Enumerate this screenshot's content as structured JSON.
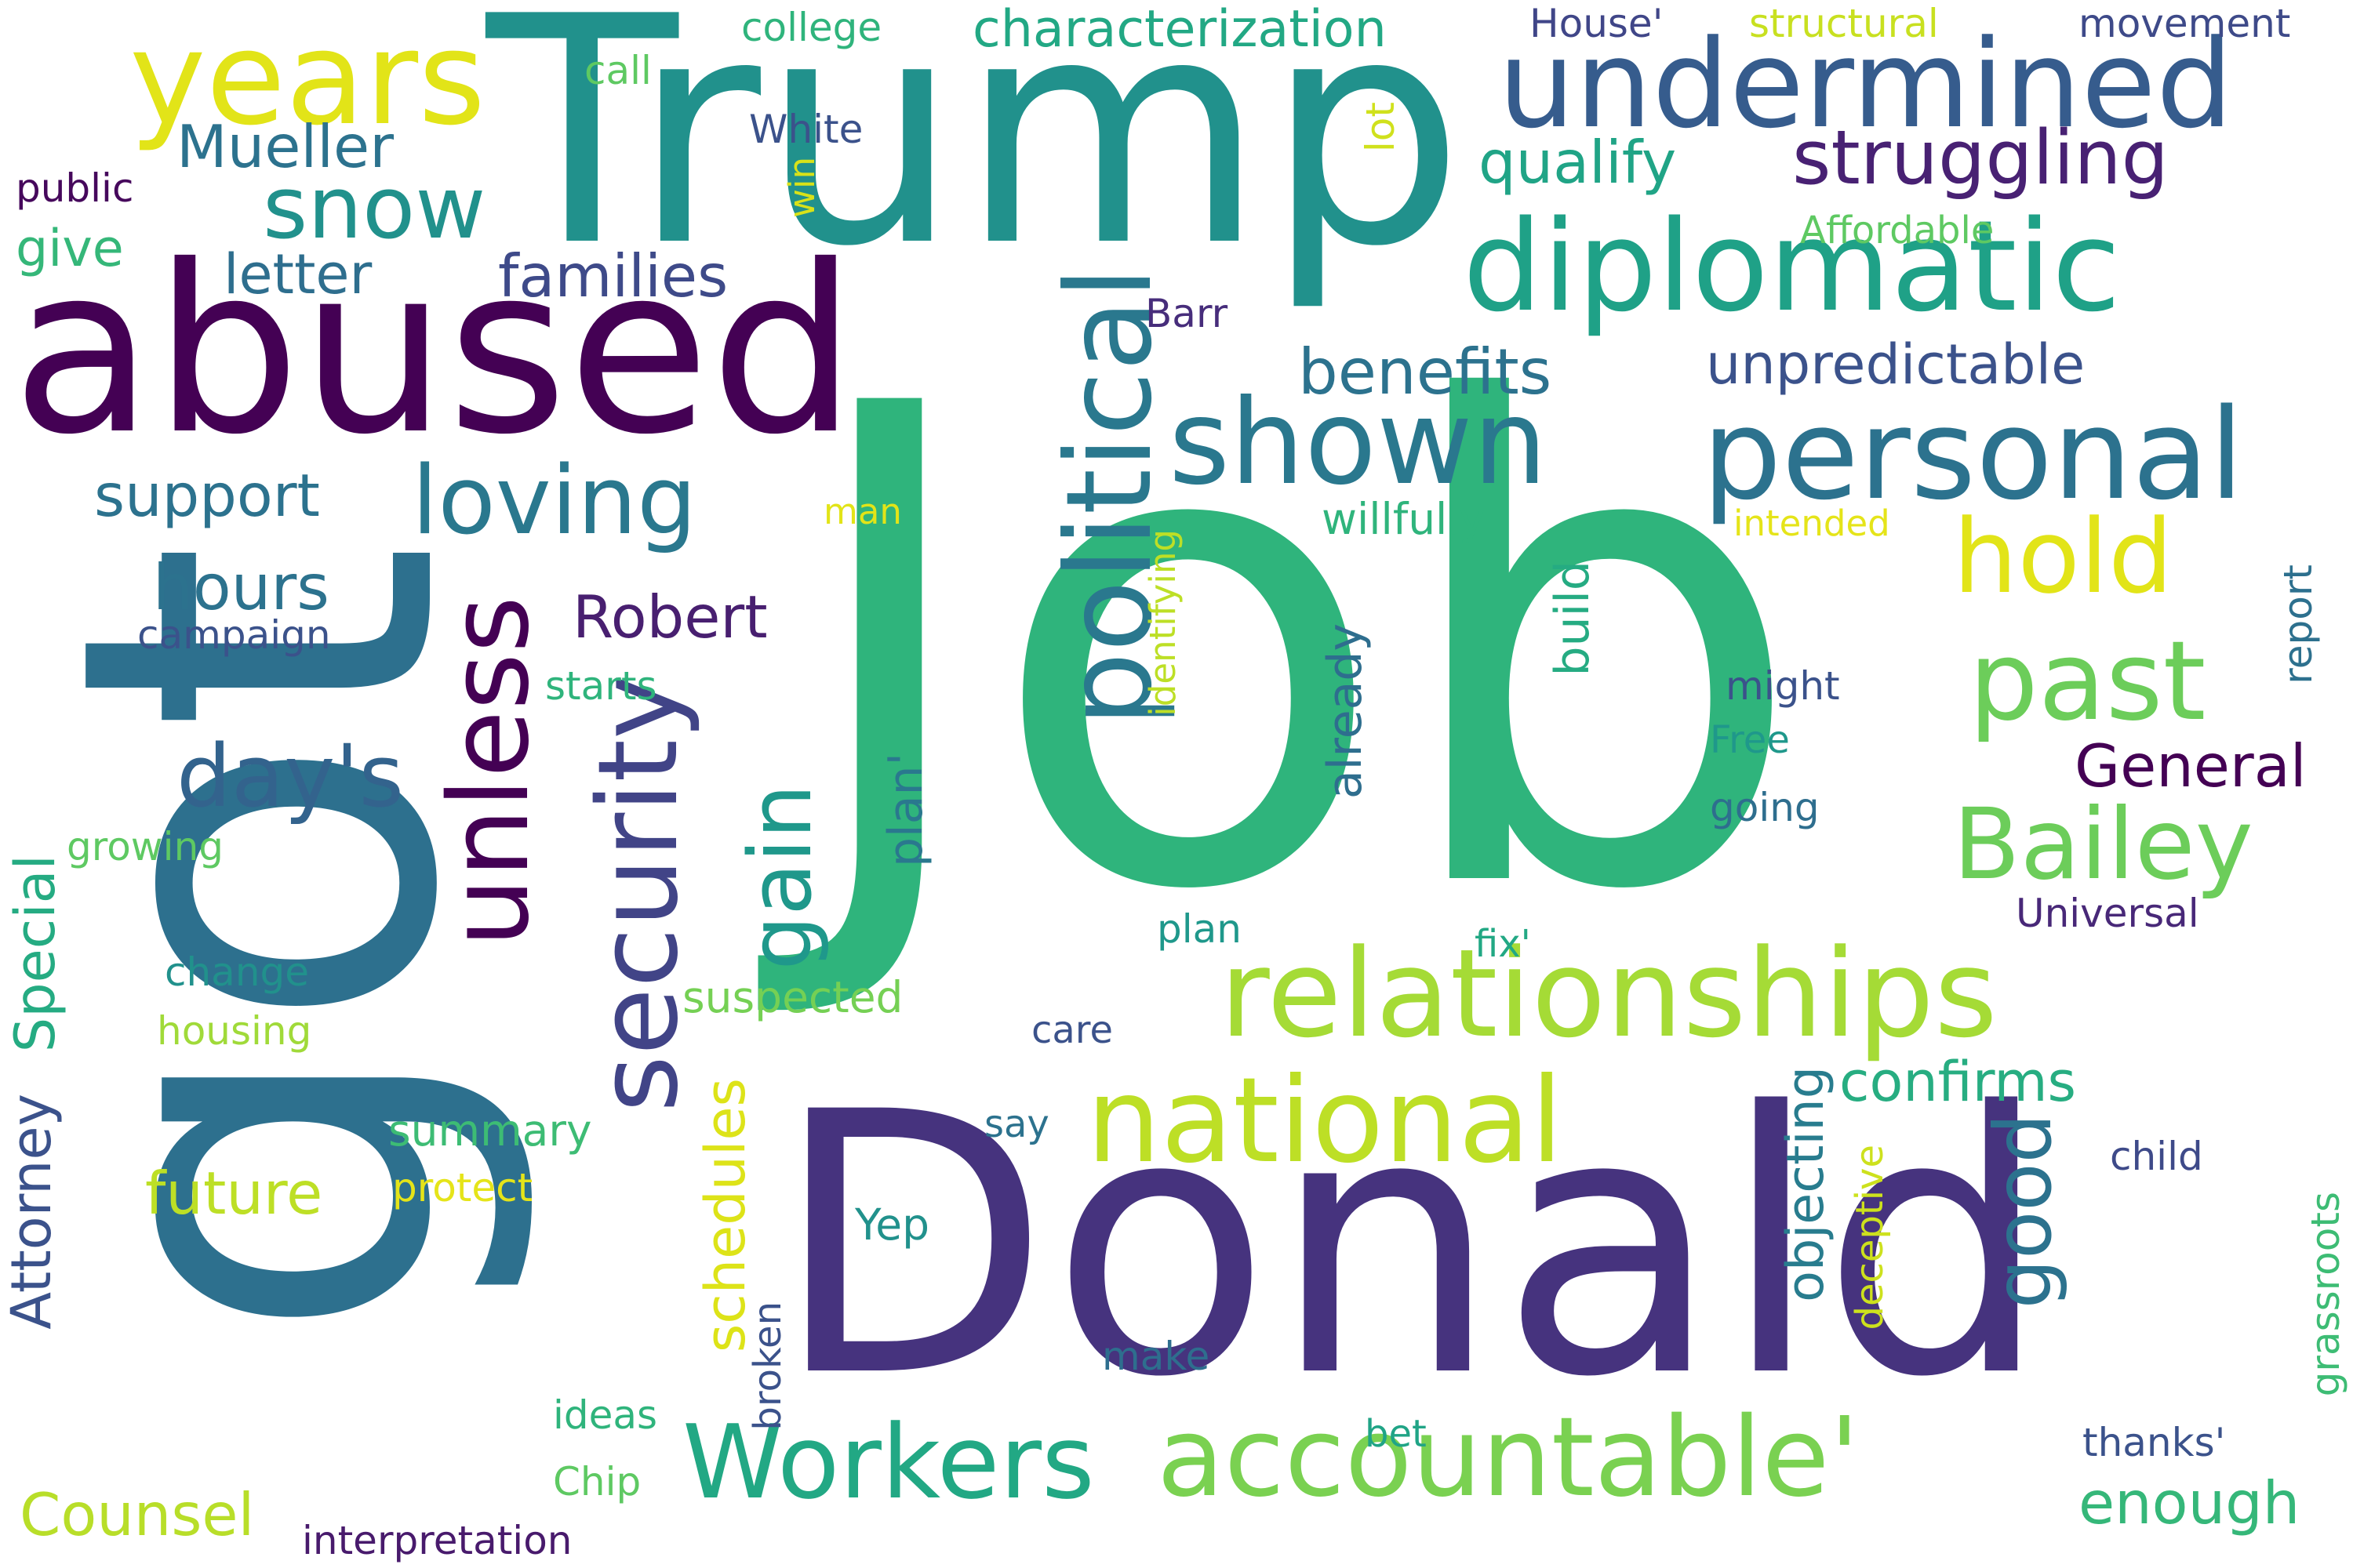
{
  "words": [
    {
      "text": "Trump",
      "color": "#21918c"
    },
    {
      "text": "abused",
      "color": "#440154"
    },
    {
      "text": "Job",
      "color": "#2fb47c"
    },
    {
      "text": "Donald",
      "color": "#46337e"
    },
    {
      "text": "got",
      "color": "#2d708e"
    },
    {
      "text": "years",
      "color": "#e2e418"
    },
    {
      "text": "undermined",
      "color": "#365c8d"
    },
    {
      "text": "diplomatic",
      "color": "#1fa187"
    },
    {
      "text": "personal",
      "color": "#2c728e"
    },
    {
      "text": "shown",
      "color": "#2a788e"
    },
    {
      "text": "relationships",
      "color": "#a5db36"
    },
    {
      "text": "national",
      "color": "#bddf26"
    },
    {
      "text": "accountable'",
      "color": "#7ad151"
    },
    {
      "text": "Workers",
      "color": "#22a884"
    },
    {
      "text": "political",
      "color": "#2a788e"
    },
    {
      "text": "security",
      "color": "#414487"
    },
    {
      "text": "unless",
      "color": "#440154"
    },
    {
      "text": "loving",
      "color": "#2a788e"
    },
    {
      "text": "snow",
      "color": "#21918c"
    },
    {
      "text": "hold",
      "color": "#e2e418"
    },
    {
      "text": "past",
      "color": "#6ccd5a"
    },
    {
      "text": "Bailey",
      "color": "#6ccd5a"
    },
    {
      "text": "gain",
      "color": "#1f988b"
    },
    {
      "text": "good",
      "color": "#2c728e"
    },
    {
      "text": "day's",
      "color": "#33638d"
    },
    {
      "text": "struggling",
      "color": "#482173"
    },
    {
      "text": "qualify",
      "color": "#20a486"
    },
    {
      "text": "Mueller",
      "color": "#2c728e"
    },
    {
      "text": "families",
      "color": "#3e4a89"
    },
    {
      "text": "letter",
      "color": "#2e6e8e"
    },
    {
      "text": "benefits",
      "color": "#2c728e"
    },
    {
      "text": "unpredictable",
      "color": "#3b528b"
    },
    {
      "text": "General",
      "color": "#440154"
    },
    {
      "text": "hours",
      "color": "#2c728e"
    },
    {
      "text": "Robert",
      "color": "#481f70"
    },
    {
      "text": "support",
      "color": "#2c728e"
    },
    {
      "text": "give",
      "color": "#35b779"
    },
    {
      "text": "campaign",
      "color": "#3b528b"
    },
    {
      "text": "confirms",
      "color": "#27ad81"
    },
    {
      "text": "future",
      "color": "#bddf26"
    },
    {
      "text": "schedules",
      "color": "#dde318"
    },
    {
      "text": "Counsel",
      "color": "#b8de29"
    },
    {
      "text": "Special",
      "color": "#25ab82"
    },
    {
      "text": "Attorney",
      "color": "#3b528b"
    },
    {
      "text": "interpretation",
      "color": "#481a6c"
    },
    {
      "text": "enough",
      "color": "#35b779"
    },
    {
      "text": "objecting",
      "color": "#287c8e"
    },
    {
      "text": "deceptive",
      "color": "#cde11d"
    },
    {
      "text": "characterization",
      "color": "#22a884"
    },
    {
      "text": "college",
      "color": "#2fb47c"
    },
    {
      "text": "call",
      "color": "#5ec962"
    },
    {
      "text": "White",
      "color": "#3b528b"
    },
    {
      "text": "House'",
      "color": "#404688"
    },
    {
      "text": "structural",
      "color": "#c8e020"
    },
    {
      "text": "movement",
      "color": "#3e4a89"
    },
    {
      "text": "public",
      "color": "#46085c"
    },
    {
      "text": "win",
      "color": "#d8e219"
    },
    {
      "text": "lot",
      "color": "#d0e11c"
    },
    {
      "text": "Affordable",
      "color": "#5ec962"
    },
    {
      "text": "Barr",
      "color": "#472d7b"
    },
    {
      "text": "willfully",
      "color": "#2fb47c"
    },
    {
      "text": "intended",
      "color": "#e5e419"
    },
    {
      "text": "report",
      "color": "#2d708e"
    },
    {
      "text": "might",
      "color": "#3b528b"
    },
    {
      "text": "Free",
      "color": "#1f988b"
    },
    {
      "text": "going",
      "color": "#2e6e8e"
    },
    {
      "text": "Universal",
      "color": "#482878"
    },
    {
      "text": "identifying",
      "color": "#bddf26"
    },
    {
      "text": "already",
      "color": "#2e6e8e"
    },
    {
      "text": "build",
      "color": "#25ab82"
    },
    {
      "text": "plan'",
      "color": "#2a788e"
    },
    {
      "text": "man",
      "color": "#e2e418"
    },
    {
      "text": "starts",
      "color": "#2fb47c"
    },
    {
      "text": "growing",
      "color": "#5ec962"
    },
    {
      "text": "change",
      "color": "#21918c"
    },
    {
      "text": "housing",
      "color": "#a0da39"
    },
    {
      "text": "suspected",
      "color": "#75d054"
    },
    {
      "text": "plan",
      "color": "#1f988b"
    },
    {
      "text": "fix'",
      "color": "#22a884"
    },
    {
      "text": "care",
      "color": "#3b528b"
    },
    {
      "text": "say",
      "color": "#2c728e"
    },
    {
      "text": "summary",
      "color": "#3dbc74"
    },
    {
      "text": "protect",
      "color": "#e5e419"
    },
    {
      "text": "Yep",
      "color": "#21918c"
    },
    {
      "text": "child",
      "color": "#3e4a89"
    },
    {
      "text": "make",
      "color": "#2e6e8e"
    },
    {
      "text": "broken",
      "color": "#3b528b"
    },
    {
      "text": "ideas",
      "color": "#2fb47c"
    },
    {
      "text": "Chip",
      "color": "#5ec962"
    },
    {
      "text": "bet",
      "color": "#20a486"
    },
    {
      "text": "thanks'",
      "color": "#3b528b"
    },
    {
      "text": "grassroots",
      "color": "#3dbc74"
    }
  ]
}
